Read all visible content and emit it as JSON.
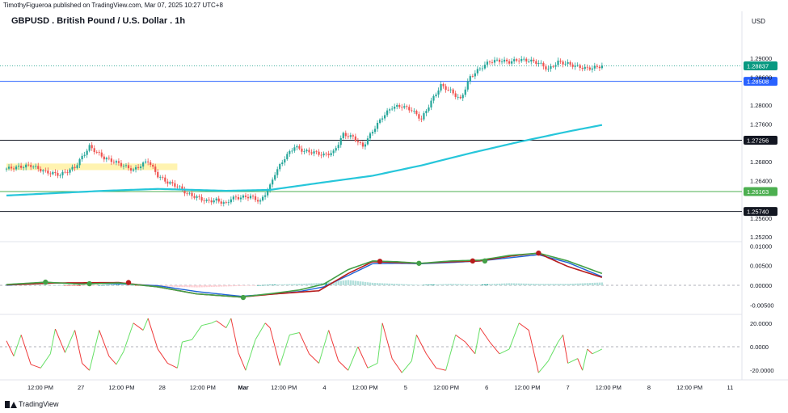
{
  "header": {
    "published_text": "TimothyFigueroa published on TradingView.com, Mar 07, 2025 10:27 UTC+8",
    "title": "GBPUSD . British Pound / U.S. Dollar . 1h",
    "currency": "USD",
    "brand": "TradingView"
  },
  "colors": {
    "up": "#26a69a",
    "down": "#ef5350",
    "ma": "#26c6da",
    "macd_fast": "#43a047",
    "macd_slow": "#1e63d6",
    "macd_signal_dark": "#b71c1c",
    "rsi_up": "#66e066",
    "rsi_down": "#ef3b3b"
  },
  "chart_data": [
    {
      "type": "candlestick",
      "title": "GBPUSD . British Pound / U.S. Dollar . 1h",
      "y_ticks": [
        "1.29000",
        "1.28600",
        "1.28000",
        "1.27600",
        "1.26800",
        "1.26400",
        "1.25600",
        "1.25200"
      ],
      "ylim": [
        1.2515,
        1.2955
      ],
      "x_ticks": [
        "12:00 PM",
        "27",
        "12:00 PM",
        "28",
        "12:00 PM",
        "Mar",
        "12:00 PM",
        "4",
        "12:00 PM",
        "5",
        "12:00 PM",
        "6",
        "12:00 PM",
        "7",
        "12:00 PM",
        "8",
        "12:00 PM",
        "11"
      ],
      "price_path": [
        [
          0,
          1.2665
        ],
        [
          10,
          1.2672
        ],
        [
          16,
          1.2658
        ],
        [
          22,
          1.2652
        ],
        [
          28,
          1.2668
        ],
        [
          34,
          1.2712
        ],
        [
          40,
          1.2688
        ],
        [
          46,
          1.2676
        ],
        [
          52,
          1.2662
        ],
        [
          58,
          1.2682
        ],
        [
          62,
          1.265
        ],
        [
          66,
          1.2636
        ],
        [
          70,
          1.2628
        ],
        [
          74,
          1.2612
        ],
        [
          78,
          1.2604
        ],
        [
          82,
          1.2596
        ],
        [
          86,
          1.2598
        ],
        [
          90,
          1.259
        ],
        [
          92,
          1.2602
        ],
        [
          96,
          1.2604
        ],
        [
          100,
          1.2606
        ],
        [
          104,
          1.2595
        ],
        [
          108,
          1.2628
        ],
        [
          110,
          1.2655
        ],
        [
          114,
          1.2688
        ],
        [
          118,
          1.2712
        ],
        [
          122,
          1.2702
        ],
        [
          126,
          1.27
        ],
        [
          130,
          1.2694
        ],
        [
          134,
          1.27
        ],
        [
          138,
          1.2738
        ],
        [
          142,
          1.2732
        ],
        [
          146,
          1.2712
        ],
        [
          150,
          1.2745
        ],
        [
          154,
          1.2775
        ],
        [
          158,
          1.2796
        ],
        [
          162,
          1.2798
        ],
        [
          166,
          1.279
        ],
        [
          170,
          1.277
        ],
        [
          174,
          1.2808
        ],
        [
          178,
          1.2842
        ],
        [
          182,
          1.283
        ],
        [
          186,
          1.2812
        ],
        [
          190,
          1.286
        ],
        [
          194,
          1.2878
        ],
        [
          198,
          1.2893
        ],
        [
          202,
          1.2895
        ],
        [
          206,
          1.2892
        ],
        [
          210,
          1.2897
        ],
        [
          214,
          1.2895
        ],
        [
          218,
          1.289
        ],
        [
          222,
          1.2876
        ],
        [
          226,
          1.2892
        ],
        [
          230,
          1.2888
        ],
        [
          234,
          1.2882
        ],
        [
          238,
          1.2878
        ],
        [
          242,
          1.2881
        ],
        [
          244,
          1.2884
        ]
      ],
      "moving_average": [
        [
          0,
          1.2608
        ],
        [
          40,
          1.2618
        ],
        [
          62,
          1.2622
        ],
        [
          90,
          1.2618
        ],
        [
          108,
          1.262
        ],
        [
          130,
          1.2636
        ],
        [
          150,
          1.265
        ],
        [
          170,
          1.2672
        ],
        [
          190,
          1.2698
        ],
        [
          210,
          1.2722
        ],
        [
          230,
          1.2744
        ],
        [
          244,
          1.2758
        ]
      ],
      "levels": [
        {
          "price": 1.28837,
          "label": "1.28837",
          "color": "#089981",
          "style": "dotted",
          "label_bg": "#089981"
        },
        {
          "price": 1.28508,
          "label": "1.28508",
          "color": "#2962ff",
          "style": "solid",
          "label_bg": "#2962ff"
        },
        {
          "price": 1.27256,
          "label": "1.27256",
          "color": "#131722",
          "style": "solid",
          "label_bg": "#131722"
        },
        {
          "price": 1.26163,
          "label": "1.26163",
          "color": "#4caf50",
          "style": "solid",
          "label_bg": "#4caf50"
        },
        {
          "price": 1.2574,
          "label": "1.25740",
          "color": "#131722",
          "style": "solid",
          "label_bg": "#131722"
        }
      ],
      "highlight_zone": {
        "from_bar": 0,
        "to_bar": 70,
        "price_top": 1.2676,
        "price_bottom": 1.2662,
        "color": "#fff3b0"
      }
    },
    {
      "type": "macd",
      "y_ticks": [
        "0.01000",
        "0.00500",
        "0.00000",
        "-0.00500"
      ],
      "ylim": [
        -0.0068,
        0.0105
      ],
      "fast_line": [
        [
          0,
          0.0002
        ],
        [
          16,
          0.0008
        ],
        [
          30,
          0.0003
        ],
        [
          46,
          0.0006
        ],
        [
          62,
          -0.0004
        ],
        [
          78,
          -0.0022
        ],
        [
          96,
          -0.003
        ],
        [
          110,
          -0.002
        ],
        [
          120,
          -0.0012
        ],
        [
          130,
          0.0003
        ],
        [
          140,
          0.004
        ],
        [
          150,
          0.0062
        ],
        [
          160,
          0.006
        ],
        [
          170,
          0.0056
        ],
        [
          182,
          0.0062
        ],
        [
          194,
          0.0064
        ],
        [
          206,
          0.0076
        ],
        [
          218,
          0.0082
        ],
        [
          230,
          0.0062
        ],
        [
          244,
          0.003
        ]
      ],
      "slow_line": [
        [
          0,
          0.0
        ],
        [
          16,
          0.0006
        ],
        [
          30,
          0.0005
        ],
        [
          46,
          0.0004
        ],
        [
          62,
          -0.0001
        ],
        [
          78,
          -0.0016
        ],
        [
          96,
          -0.0028
        ],
        [
          110,
          -0.0022
        ],
        [
          120,
          -0.0016
        ],
        [
          130,
          -0.0004
        ],
        [
          140,
          0.0025
        ],
        [
          150,
          0.0055
        ],
        [
          160,
          0.0056
        ],
        [
          170,
          0.0055
        ],
        [
          182,
          0.0058
        ],
        [
          194,
          0.0062
        ],
        [
          206,
          0.007
        ],
        [
          218,
          0.0078
        ],
        [
          230,
          0.0058
        ],
        [
          244,
          0.0022
        ]
      ],
      "signal_line": [
        [
          0,
          0.0001
        ],
        [
          20,
          0.0006
        ],
        [
          46,
          0.0007
        ],
        [
          62,
          -0.0004
        ],
        [
          78,
          -0.0022
        ],
        [
          96,
          -0.003
        ],
        [
          110,
          -0.0022
        ],
        [
          128,
          -0.0014
        ],
        [
          140,
          0.003
        ],
        [
          150,
          0.006
        ],
        [
          160,
          0.0058
        ],
        [
          170,
          0.0056
        ],
        [
          182,
          0.006
        ],
        [
          194,
          0.0062
        ],
        [
          206,
          0.0074
        ],
        [
          218,
          0.0082
        ],
        [
          222,
          0.007
        ],
        [
          230,
          0.0048
        ],
        [
          244,
          0.002
        ]
      ],
      "cross_markers": [
        {
          "bar": 16,
          "value": 0.0008,
          "kind": "green"
        },
        {
          "bar": 34,
          "value": 0.0004,
          "kind": "green"
        },
        {
          "bar": 50,
          "value": 0.0007,
          "kind": "red"
        },
        {
          "bar": 97,
          "value": -0.0031,
          "kind": "green"
        },
        {
          "bar": 153,
          "value": 0.0061,
          "kind": "red"
        },
        {
          "bar": 169,
          "value": 0.0056,
          "kind": "green"
        },
        {
          "bar": 191,
          "value": 0.0062,
          "kind": "red"
        },
        {
          "bar": 196,
          "value": 0.0062,
          "kind": "green"
        },
        {
          "bar": 218,
          "value": 0.0082,
          "kind": "red"
        }
      ]
    },
    {
      "type": "line",
      "name": "oscillator",
      "y_ticks": [
        "20.0000",
        "0.0000",
        "-20.0000"
      ],
      "ylim": [
        -26,
        26
      ],
      "values": [
        [
          0,
          5
        ],
        [
          3,
          -8
        ],
        [
          6,
          10
        ],
        [
          10,
          -15
        ],
        [
          14,
          -18
        ],
        [
          18,
          -6
        ],
        [
          20,
          15
        ],
        [
          24,
          -5
        ],
        [
          28,
          14
        ],
        [
          31,
          -14
        ],
        [
          34,
          -20
        ],
        [
          38,
          14
        ],
        [
          42,
          -8
        ],
        [
          45,
          -15
        ],
        [
          48,
          -4
        ],
        [
          52,
          20
        ],
        [
          56,
          14
        ],
        [
          58,
          24
        ],
        [
          62,
          -2
        ],
        [
          66,
          -14
        ],
        [
          70,
          -18
        ],
        [
          72,
          4
        ],
        [
          76,
          6
        ],
        [
          80,
          18
        ],
        [
          84,
          20
        ],
        [
          86,
          22
        ],
        [
          90,
          16
        ],
        [
          92,
          24
        ],
        [
          95,
          -5
        ],
        [
          98,
          -20
        ],
        [
          102,
          6
        ],
        [
          106,
          20
        ],
        [
          108,
          16
        ],
        [
          112,
          -16
        ],
        [
          116,
          10
        ],
        [
          120,
          12
        ],
        [
          124,
          -6
        ],
        [
          128,
          -14
        ],
        [
          132,
          14
        ],
        [
          136,
          -12
        ],
        [
          140,
          -20
        ],
        [
          144,
          0
        ],
        [
          148,
          -18
        ],
        [
          152,
          -14
        ],
        [
          154,
          20
        ],
        [
          158,
          -10
        ],
        [
          162,
          -22
        ],
        [
          166,
          -12
        ],
        [
          168,
          10
        ],
        [
          172,
          -6
        ],
        [
          176,
          -18
        ],
        [
          180,
          -20
        ],
        [
          184,
          10
        ],
        [
          188,
          4
        ],
        [
          192,
          -6
        ],
        [
          194,
          16
        ],
        [
          198,
          4
        ],
        [
          202,
          -6
        ],
        [
          206,
          -2
        ],
        [
          210,
          20
        ],
        [
          214,
          14
        ],
        [
          218,
          -22
        ],
        [
          222,
          -12
        ],
        [
          226,
          4
        ],
        [
          228,
          10
        ],
        [
          230,
          -14
        ],
        [
          234,
          -10
        ],
        [
          236,
          -20
        ],
        [
          238,
          -2
        ],
        [
          240,
          -6
        ],
        [
          244,
          -2
        ]
      ]
    }
  ]
}
